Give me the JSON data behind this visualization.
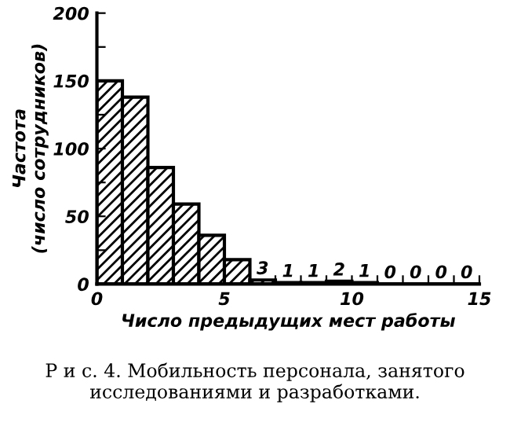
{
  "chart_data": {
    "type": "histogram",
    "xlabel": "Число предыдущих мест работы",
    "ylabel": "Частота\n(число сотрудников)",
    "annotations": [
      "Р и с. 4. Мобильность персонала, занятого исследованиями и разработками."
    ],
    "bins": [
      0,
      1,
      2,
      3,
      4,
      5,
      6,
      7,
      8,
      9,
      10,
      11,
      12,
      13,
      14,
      15
    ],
    "values": [
      150,
      138,
      86,
      59,
      36,
      18,
      3,
      1,
      1,
      2,
      1,
      0,
      0,
      0,
      0
    ],
    "value_labels": [
      null,
      null,
      null,
      null,
      null,
      null,
      "3",
      "1",
      "1",
      "2",
      "1",
      "0",
      "0",
      "0",
      "0"
    ],
    "color": "#000000",
    "xlim": [
      0,
      15
    ],
    "xticks": [
      0,
      {
        "value": 1,
        "label": null
      },
      {
        "value": 2,
        "label": null
      },
      {
        "value": 3,
        "label": null
      },
      {
        "value": 4,
        "label": null
      },
      5,
      {
        "value": 6,
        "label": null
      },
      {
        "value": 7,
        "label": null
      },
      {
        "value": 8,
        "label": null
      },
      {
        "value": 9,
        "label": null
      },
      10,
      {
        "value": 11,
        "label": null
      },
      {
        "value": 12,
        "label": null
      },
      {
        "value": 13,
        "label": null
      },
      {
        "value": 14,
        "label": null
      },
      15
    ],
    "ylim": [
      0,
      200
    ],
    "yticks": [
      0,
      {
        "value": 25,
        "label": null
      },
      50,
      {
        "value": 75,
        "label": null
      },
      100,
      {
        "value": 125,
        "label": null
      },
      150,
      {
        "value": 175,
        "label": null
      },
      200
    ],
    "grid": false
  }
}
